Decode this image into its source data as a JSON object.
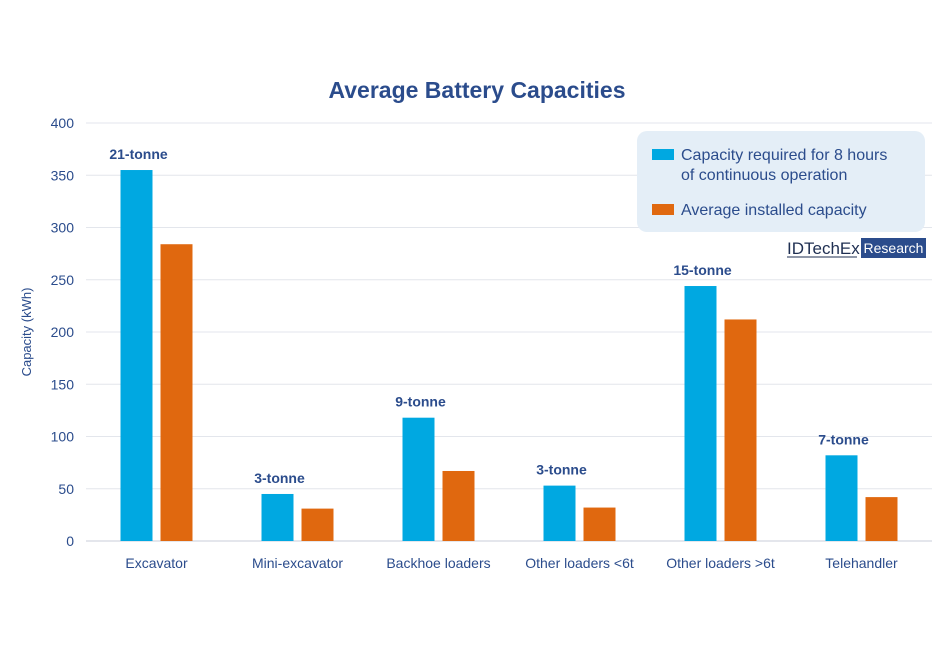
{
  "chart_data": {
    "type": "bar",
    "title": "Average Battery Capacities",
    "ylabel": "Capacity (kWh)",
    "xlabel": "",
    "ylim": [
      0,
      400
    ],
    "yticks": [
      0,
      50,
      100,
      150,
      200,
      250,
      300,
      350,
      400
    ],
    "grid": true,
    "legend_position": "top-right",
    "categories": [
      "Excavator",
      "Mini-excavator",
      "Backhoe loaders",
      "Other loaders <6t",
      "Other loaders >6t",
      "Telehandler"
    ],
    "annotations": [
      "21-tonne",
      "3-tonne",
      "9-tonne",
      "3-tonne",
      "15-tonne",
      "7-tonne"
    ],
    "series": [
      {
        "name": "Capacity required for 8 hours of continuous operation",
        "legend_lines": [
          "Capacity required for 8 hours",
          "of continuous operation"
        ],
        "color": "#00a8e1",
        "values": [
          355,
          45,
          118,
          53,
          244,
          82
        ]
      },
      {
        "name": "Average installed capacity",
        "legend_lines": [
          "Average installed capacity"
        ],
        "color": "#e0680f",
        "values": [
          284,
          31,
          67,
          32,
          212,
          42
        ]
      }
    ]
  },
  "brand": {
    "name": "IDTechEx",
    "tag": "Research",
    "tag_color": "#2b4c8c"
  },
  "colors": {
    "text": "#2b4c8c",
    "legend_bg": "#e4eef7"
  }
}
